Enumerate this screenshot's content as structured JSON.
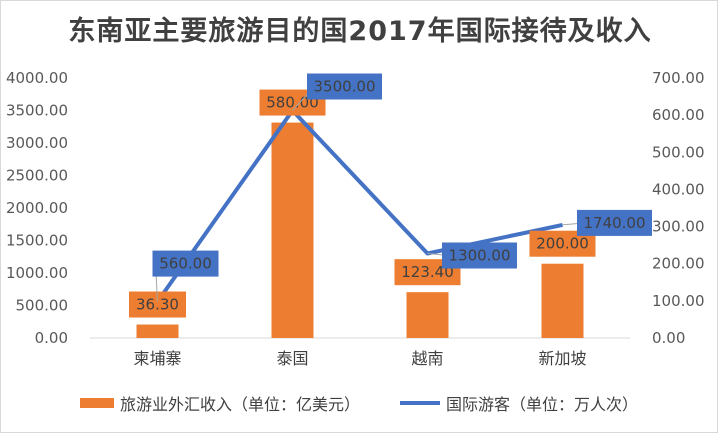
{
  "chart_data": {
    "type": "bar",
    "title": "东南亚主要旅游目的国2017年国际接待及收入",
    "categories": [
      "柬埔寨",
      "泰国",
      "越南",
      "新加坡"
    ],
    "series": [
      {
        "name": "旅游业外汇收入（单位：亿美元）",
        "type": "bar",
        "axis": "right",
        "values": [
          36.3,
          580.0,
          123.4,
          200.0
        ],
        "labels": [
          "36.30",
          "580.00",
          "123.40",
          "200.00"
        ],
        "color": "#ed7d31"
      },
      {
        "name": "国际游客（单位：万人次）",
        "type": "line",
        "axis": "left",
        "values": [
          560.0,
          3500.0,
          1300.0,
          1740.0
        ],
        "labels": [
          "560.00",
          "3500.00",
          "1300.00",
          "1740.00"
        ],
        "color": "#4472c4"
      }
    ],
    "y_left": {
      "lim": [
        0,
        4000
      ],
      "ticks": [
        "0.00",
        "500.00",
        "1000.00",
        "1500.00",
        "2000.00",
        "2500.00",
        "3000.00",
        "3500.00",
        "4000.00"
      ]
    },
    "y_right": {
      "lim": [
        0,
        700
      ],
      "ticks": [
        "0.00",
        "100.00",
        "200.00",
        "300.00",
        "400.00",
        "500.00",
        "600.00",
        "700.00"
      ]
    },
    "grid": false,
    "legend_position": "bottom",
    "label_box_colors": {
      "bar": "#ed7d31",
      "line": "#4472c4"
    }
  }
}
